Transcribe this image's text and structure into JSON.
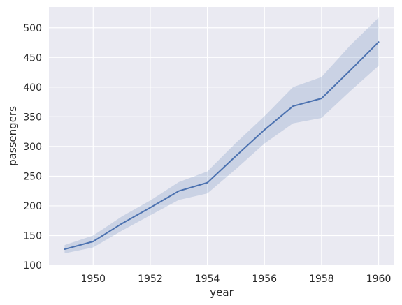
{
  "chart_data": {
    "type": "line",
    "xlabel": "year",
    "ylabel": "passengers",
    "xlim": [
      1948.45,
      1960.55
    ],
    "ylim": [
      100,
      535
    ],
    "x_ticks": [
      1950,
      1952,
      1954,
      1956,
      1958,
      1960
    ],
    "y_ticks": [
      100,
      150,
      200,
      250,
      300,
      350,
      400,
      450,
      500
    ],
    "grid": true,
    "legend": "none",
    "background_color": "#eaeaf2",
    "grid_color": "#ffffff",
    "series": [
      {
        "color": "#4c72b0",
        "x": [
          1949,
          1950,
          1951,
          1952,
          1953,
          1954,
          1955,
          1956,
          1957,
          1958,
          1959,
          1960
        ],
        "y": [
          127,
          140,
          170,
          197,
          225,
          239,
          284,
          328,
          368,
          381,
          428,
          476
        ],
        "ci_lower": [
          120,
          130,
          158,
          184,
          210,
          221,
          262,
          305,
          339,
          348,
          393,
          436
        ],
        "ci_upper": [
          134,
          150,
          182,
          209,
          240,
          258,
          306,
          351,
          400,
          417,
          470,
          517
        ]
      }
    ]
  }
}
